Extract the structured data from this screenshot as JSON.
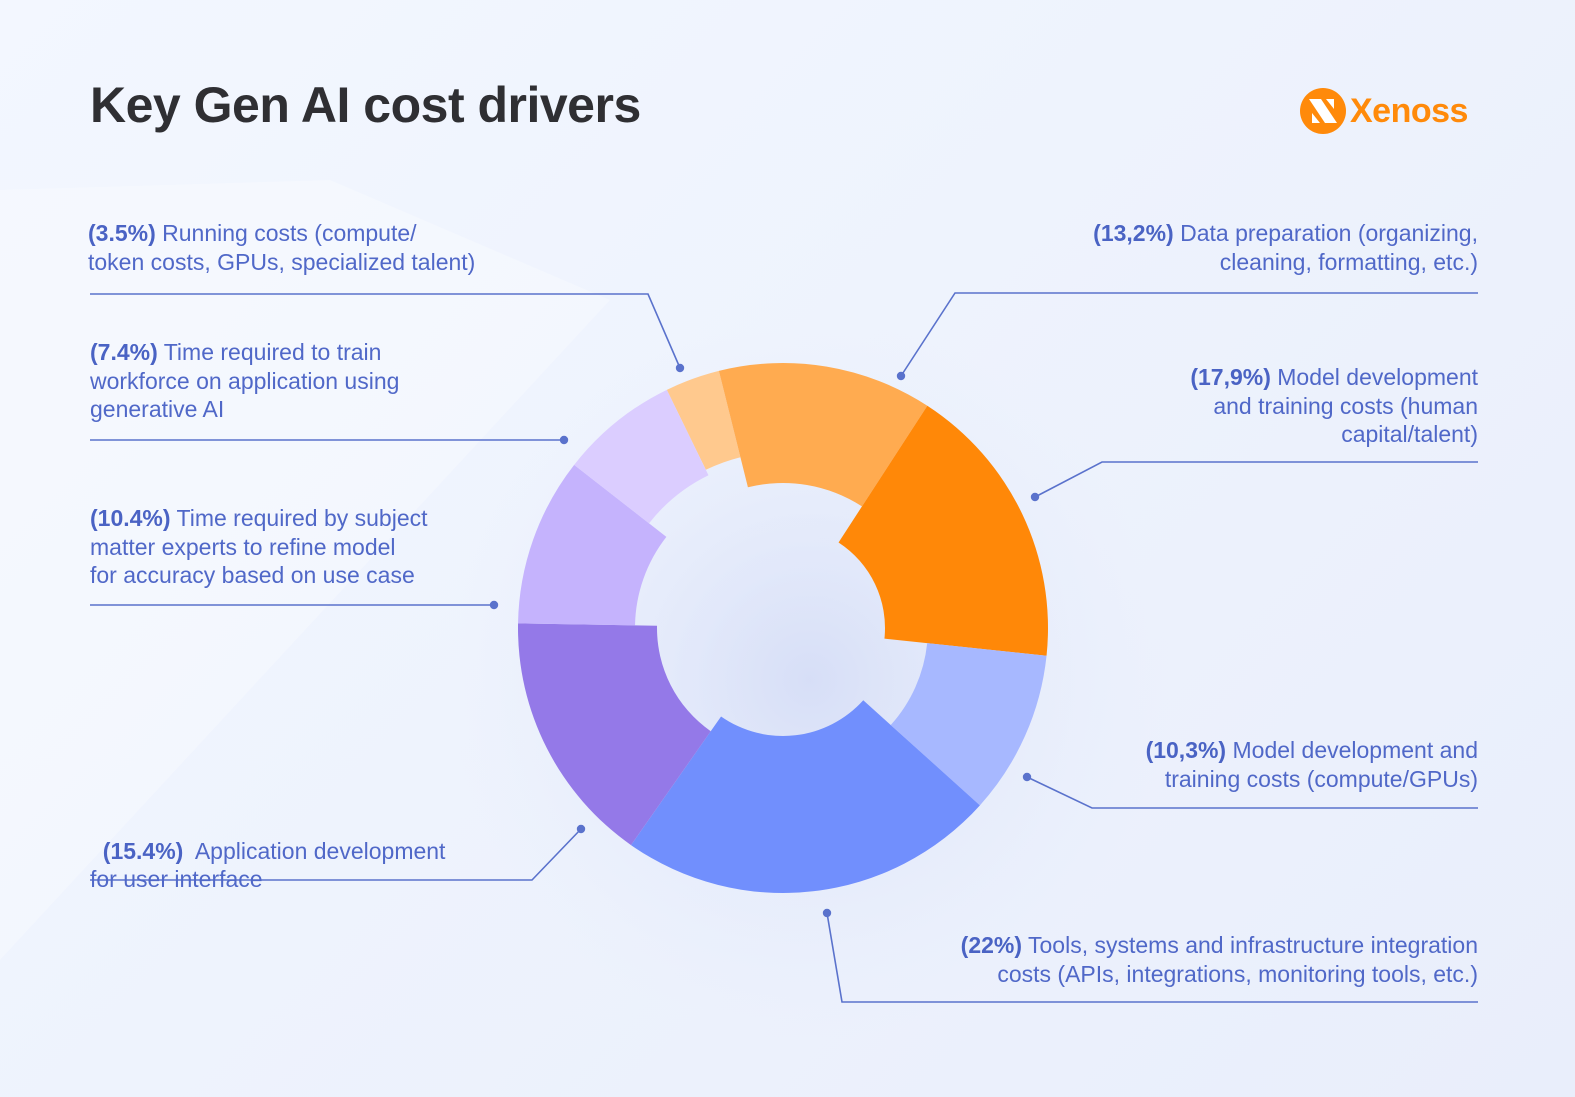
{
  "header": {
    "title": "Key Gen AI cost drivers",
    "logo_text": "Xenoss",
    "logo_color": "#ff8a0a"
  },
  "colors": {
    "text": "#5068c8",
    "line": "#5a72cc",
    "title": "#2f2f33"
  },
  "chart_data": {
    "type": "pie",
    "subtype": "donut",
    "title": "Key Gen AI cost drivers",
    "units": "%",
    "slices": [
      {
        "label": "Running costs (compute/token costs, GPUs, specialized talent)",
        "value": 3.5,
        "color": "#ffc98e"
      },
      {
        "label": "Data preparation (organizing, cleaning, formatting, etc.)",
        "value": 13.2,
        "color": "#ffab50"
      },
      {
        "label": "Model development and training costs (human capital/talent)",
        "value": 17.9,
        "color": "#ff8808"
      },
      {
        "label": "Model development and training costs (compute/GPUs)",
        "value": 10.3,
        "color": "#a7b8ff"
      },
      {
        "label": "Tools, systems and infrastructure integration costs (APIs, integrations, monitoring tools, etc.)",
        "value": 22,
        "color": "#718ffd"
      },
      {
        "label": "Application development for user interface",
        "value": 15.4,
        "color": "#9479e8"
      },
      {
        "label": "Time required by subject matter experts to refine model for accuracy based on use case",
        "value": 10.4,
        "color": "#c5b3fd"
      },
      {
        "label": "Time required to train workforce on application using generative AI",
        "value": 7.4,
        "color": "#dbcdff"
      }
    ],
    "legend_position": "annotations around donut"
  },
  "annotations": {
    "running": {
      "pct": "(3.5%)",
      "text1": " Running costs (compute/",
      "text2": "token costs, GPUs, specialized talent)"
    },
    "workforce": {
      "pct": "(7.4%)",
      "text1": " Time required to train",
      "text2": "workforce on application using",
      "text3": "generative AI"
    },
    "experts": {
      "pct": "(10.4%)",
      "text1": " Time required by subject",
      "text2": "matter experts to refine model",
      "text3": "for accuracy based on use case"
    },
    "appdev": {
      "pct": "(15.4%)",
      "text1": "  Application development",
      "text2": "for user interface"
    },
    "dataprep": {
      "pct": "(13,2%)",
      "text1": " Data preparation (organizing,",
      "text2": "cleaning, formatting, etc.)"
    },
    "model_human": {
      "pct": "(17,9%)",
      "text1": " Model development",
      "text2": "and training costs (human",
      "text3": "capital/talent)"
    },
    "model_compute": {
      "pct": "(10,3%)",
      "text1": " Model development and",
      "text2": "training costs (compute/GPUs)"
    },
    "tools": {
      "pct": "(22%)",
      "text1": " Tools, systems and infrastructure integration",
      "text2": "costs (APIs, integrations, monitoring tools, etc.)"
    }
  }
}
